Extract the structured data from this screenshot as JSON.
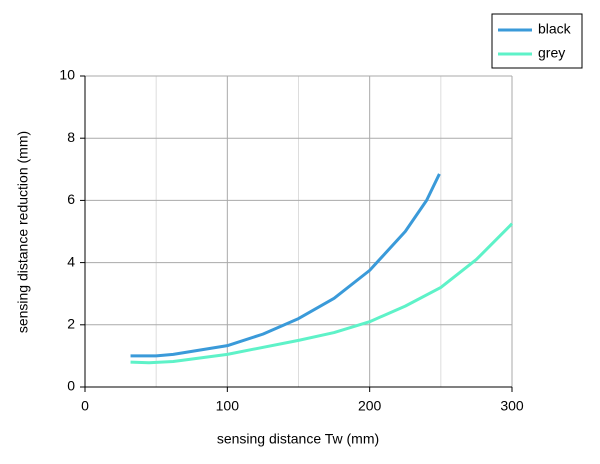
{
  "chart_data": {
    "type": "line",
    "x_label": "sensing distance Tw (mm)",
    "y_label": "sensing distance reduction (mm)",
    "xlim": [
      0,
      300
    ],
    "xticks": [
      0,
      100,
      200,
      300
    ],
    "xminor": [
      50,
      150,
      250
    ],
    "ylim": [
      0,
      10
    ],
    "yticks": [
      0,
      2,
      4,
      6,
      8,
      10
    ],
    "grid": true,
    "legend": "top-right",
    "series": [
      {
        "name": "black",
        "color": "#3a9ad9",
        "x": [
          32,
          50,
          62,
          100,
          125,
          150,
          175,
          200,
          225,
          240,
          249
        ],
        "values": [
          1.0,
          1.0,
          1.05,
          1.33,
          1.7,
          2.2,
          2.85,
          3.75,
          5.0,
          6.0,
          6.85
        ]
      },
      {
        "name": "grey",
        "color": "#5ef2c8",
        "x": [
          32,
          45,
          62,
          100,
          150,
          175,
          200,
          225,
          250,
          275,
          300
        ],
        "values": [
          0.8,
          0.78,
          0.82,
          1.05,
          1.5,
          1.75,
          2.1,
          2.6,
          3.2,
          4.1,
          5.25
        ]
      }
    ]
  }
}
